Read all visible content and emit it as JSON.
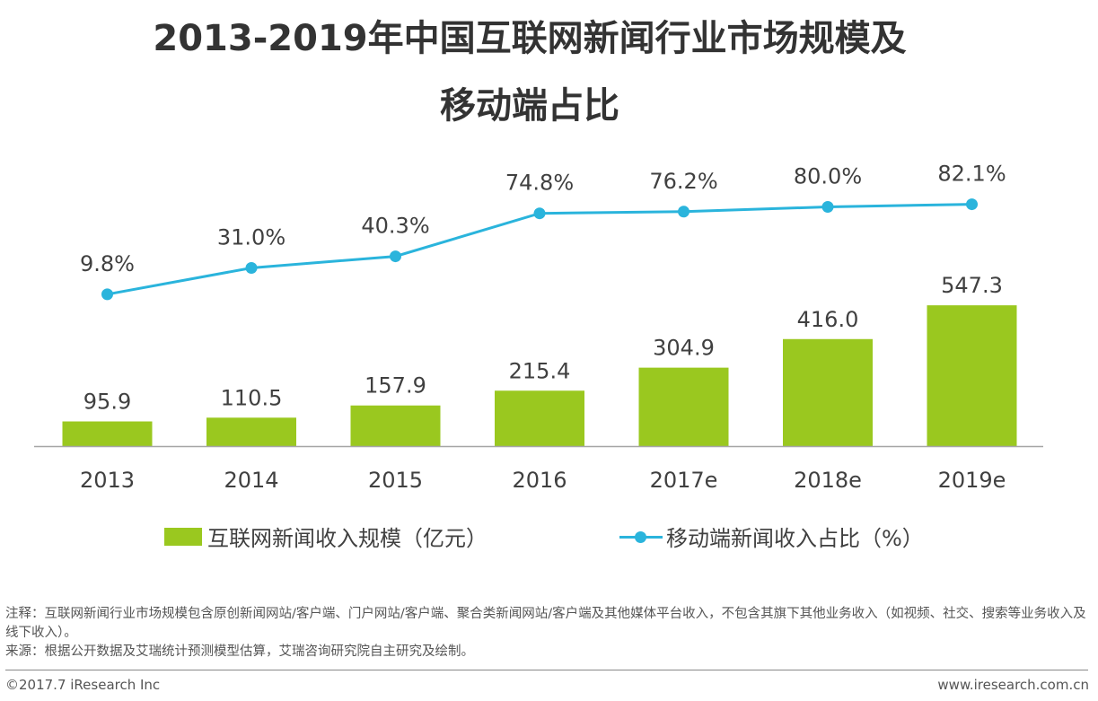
{
  "title_line1": "2013-2019年中国互联网新闻行业市场规模及",
  "title_line2": "移动端占比",
  "chart_data": {
    "type": "bar+line",
    "categories": [
      "2013",
      "2014",
      "2015",
      "2016",
      "2017e",
      "2018e",
      "2019e"
    ],
    "series": [
      {
        "name": "互联网新闻收入规模（亿元）",
        "type": "bar",
        "color": "#9ac81f",
        "values": [
          95.9,
          110.5,
          157.9,
          215.4,
          304.9,
          416.0,
          547.3
        ],
        "labels": [
          "95.9",
          "110.5",
          "157.9",
          "215.4",
          "304.9",
          "416.0",
          "547.3"
        ]
      },
      {
        "name": "移动端新闻收入占比（%）",
        "type": "line",
        "color": "#2ab4dc",
        "values": [
          9.8,
          31.0,
          40.3,
          74.8,
          76.2,
          80.0,
          82.1
        ],
        "labels": [
          "9.8%",
          "31.0%",
          "40.3%",
          "74.8%",
          "76.2%",
          "80.0%",
          "82.1%"
        ]
      }
    ]
  },
  "legend": {
    "bar_label": "互联网新闻收入规模（亿元）",
    "line_label": "移动端新闻收入占比（%）"
  },
  "notes": {
    "note": "注释：互联网新闻行业市场规模包含原创新闻网站/客户端、门户网站/客户端、聚合类新闻网站/客户端及其他媒体平台收入，不包含其旗下其他业务收入（如视频、社交、搜索等业务收入及线下收入）。",
    "source": "来源：根据公开数据及艾瑞统计预测模型估算，艾瑞咨询研究院自主研究及绘制。"
  },
  "footer": {
    "copyright": "©2017.7 iResearch Inc",
    "url": "www.iresearch.com.cn"
  }
}
